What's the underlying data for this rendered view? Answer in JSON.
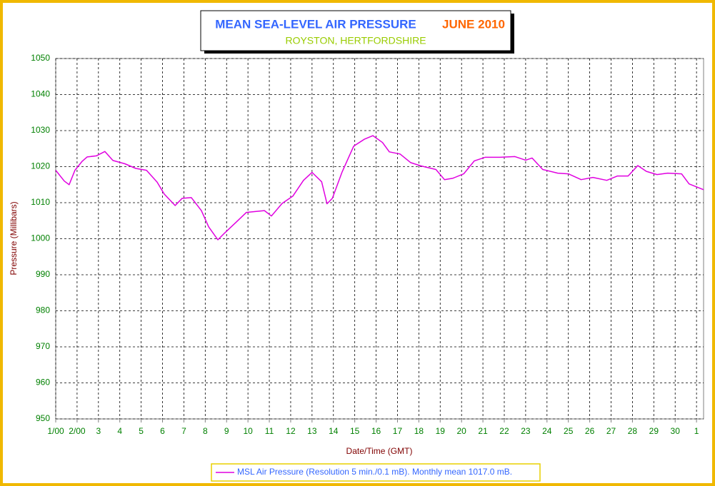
{
  "chart_data": {
    "type": "line",
    "title": "MEAN SEA-LEVEL AIR PRESSURE",
    "title_period": "JUNE 2010",
    "subtitle": "ROYSTON, HERTFORDSHIRE",
    "xlabel": "Date/Time (GMT)",
    "ylabel": "Pressure (Millibars)",
    "x": [
      0,
      0.4,
      0.63,
      0.9,
      1.24,
      1.47,
      1.9,
      2.3,
      2.68,
      3.24,
      3.75,
      4.25,
      4.75,
      5.08,
      5.59,
      5.92,
      6.35,
      6.82,
      7.16,
      7.59,
      7.93,
      8.43,
      8.93,
      9.77,
      10.1,
      10.6,
      11.1,
      11.6,
      12.0,
      12.45,
      12.7,
      12.95,
      13.4,
      13.7,
      13.95,
      14.45,
      14.85,
      15.3,
      15.62,
      16.12,
      16.62,
      17.1,
      17.8,
      18.2,
      18.6,
      19.1,
      19.6,
      20.1,
      20.8,
      21.5,
      22.0,
      22.3,
      22.8,
      23.5,
      24.0,
      24.6,
      25.15,
      25.8,
      26.3,
      26.8,
      27.25,
      27.65,
      28.15,
      28.65,
      29.3,
      29.65,
      30.33
    ],
    "series": [
      {
        "name": "MSL Air Pressure (Resolution 5 min./0.1 mB). Monthly mean 1017.0 mB.",
        "color": "#e000e0",
        "values": [
          1019,
          1016,
          1015,
          1019,
          1021.5,
          1022.7,
          1023,
          1024.2,
          1021.7,
          1020.8,
          1019.5,
          1019,
          1015.7,
          1012.4,
          1009.2,
          1011.2,
          1011.4,
          1007.8,
          1003.3,
          999.7,
          1001.7,
          1004.5,
          1007.3,
          1007.8,
          1006.3,
          1009.8,
          1011.8,
          1016.2,
          1018.4,
          1015.8,
          1009.7,
          1011.2,
          1018.4,
          1022.4,
          1025.7,
          1027.6,
          1028.6,
          1026.7,
          1024.1,
          1023.5,
          1021.1,
          1020.2,
          1019.2,
          1016.4,
          1016.8,
          1018,
          1021.6,
          1022.6,
          1022.6,
          1022.8,
          1021.8,
          1022.4,
          1019.2,
          1018.2,
          1018,
          1016.4,
          1017,
          1016.2,
          1017.4,
          1017.4,
          1020.3,
          1018.7,
          1017.8,
          1018.2,
          1018,
          1015.2,
          1013.6
        ]
      }
    ],
    "xlim": [
      0,
      30.33
    ],
    "xticks": [
      {
        "value": 0,
        "label": "1/00"
      },
      {
        "value": 1,
        "label": "2/00"
      },
      {
        "value": 2,
        "label": "3"
      },
      {
        "value": 3,
        "label": "4"
      },
      {
        "value": 4,
        "label": "5"
      },
      {
        "value": 5,
        "label": "6"
      },
      {
        "value": 6,
        "label": "7"
      },
      {
        "value": 7,
        "label": "8"
      },
      {
        "value": 8,
        "label": "9"
      },
      {
        "value": 9,
        "label": "10"
      },
      {
        "value": 10,
        "label": "11"
      },
      {
        "value": 11,
        "label": "12"
      },
      {
        "value": 12,
        "label": "13"
      },
      {
        "value": 13,
        "label": "14"
      },
      {
        "value": 14,
        "label": "15"
      },
      {
        "value": 15,
        "label": "16"
      },
      {
        "value": 16,
        "label": "17"
      },
      {
        "value": 17,
        "label": "18"
      },
      {
        "value": 18,
        "label": "19"
      },
      {
        "value": 19,
        "label": "20"
      },
      {
        "value": 20,
        "label": "21"
      },
      {
        "value": 21,
        "label": "22"
      },
      {
        "value": 22,
        "label": "23"
      },
      {
        "value": 23,
        "label": "24"
      },
      {
        "value": 24,
        "label": "25"
      },
      {
        "value": 25,
        "label": "26"
      },
      {
        "value": 26,
        "label": "27"
      },
      {
        "value": 27,
        "label": "28"
      },
      {
        "value": 28,
        "label": "29"
      },
      {
        "value": 29,
        "label": "30"
      },
      {
        "value": 30,
        "label": "1"
      }
    ],
    "ylim": [
      950,
      1050
    ],
    "yticks": [
      950,
      960,
      970,
      980,
      990,
      1000,
      1010,
      1020,
      1030,
      1040,
      1050
    ],
    "grid": true
  }
}
